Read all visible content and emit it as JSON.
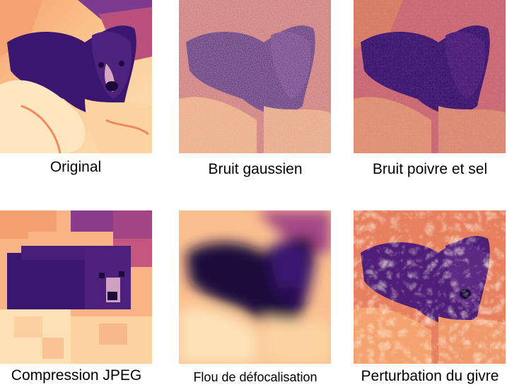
{
  "figure": {
    "panels": [
      {
        "caption": "Original"
      },
      {
        "caption": "Bruit gaussien"
      },
      {
        "caption": "Bruit poivre et sel"
      },
      {
        "caption": "Compression JPEG"
      },
      {
        "caption": "Flou de défocalisation"
      },
      {
        "caption": "Perturbation du givre"
      }
    ],
    "colors": {
      "dark": "#2a0f5e",
      "mid_purple": "#5b2a8c",
      "magenta": "#b53b79",
      "orange": "#f08a5a",
      "light": "#fcd3a1",
      "cream": "#fde6c0"
    }
  }
}
